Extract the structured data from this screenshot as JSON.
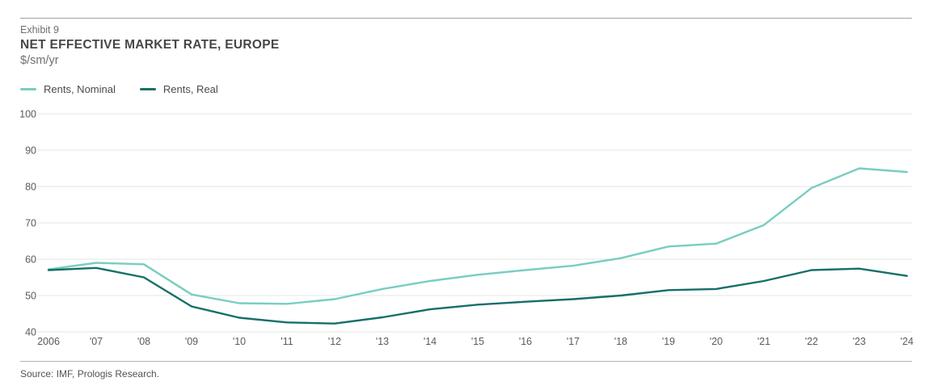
{
  "header": {
    "exhibit": "Exhibit 9",
    "title": "NET EFFECTIVE MARKET RATE, EUROPE",
    "units": "$/sm/yr"
  },
  "footer": {
    "source": "Source: IMF, Prologis Research."
  },
  "colors": {
    "nominal_line": "#79CDC1",
    "real_line": "#166F6A",
    "gridline": "#e4e4e4",
    "axis_text": "#5b5b5b"
  },
  "chart_data": {
    "type": "line",
    "title": "NET EFFECTIVE MARKET RATE, EUROPE",
    "subtitle": "$/sm/yr",
    "categories": [
      "2006",
      "'07",
      "'08",
      "'09",
      "'10",
      "'11",
      "'12",
      "'13",
      "'14",
      "'15",
      "'16",
      "'17",
      "'18",
      "'19",
      "'20",
      "'21",
      "'22",
      "'23",
      "'24"
    ],
    "series": [
      {
        "name": "Rents, Nominal",
        "color": "#79CDC1",
        "values": [
          57.2,
          59,
          58.6,
          50.3,
          47.9,
          47.7,
          49,
          51.8,
          54,
          55.7,
          57,
          58.2,
          60.3,
          63.5,
          64.3,
          69.4,
          79.6,
          85,
          84
        ]
      },
      {
        "name": "Rents, Real",
        "color": "#166F6A",
        "values": [
          57,
          57.6,
          55,
          47,
          43.9,
          42.6,
          42.3,
          44,
          46.2,
          47.5,
          48.3,
          49,
          50,
          51.5,
          51.8,
          54,
          57,
          57.4,
          55.4
        ]
      }
    ],
    "xlabel": "",
    "ylabel": "$/sm/yr",
    "ylim": [
      40,
      100
    ],
    "yticks": [
      40,
      50,
      60,
      70,
      80,
      90,
      100
    ],
    "grid": "horizontal",
    "legend_position": "top-left"
  }
}
